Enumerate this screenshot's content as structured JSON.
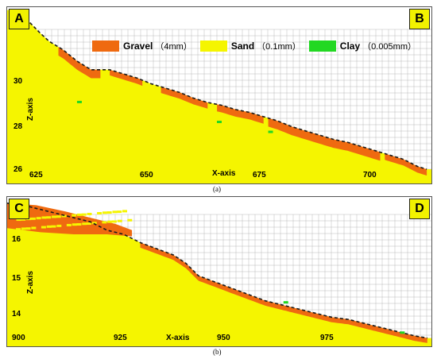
{
  "legend": {
    "items": [
      {
        "name": "Gravel",
        "size": "（4mm）",
        "color": "#ef6a10"
      },
      {
        "name": "Sand",
        "size": "（0.1mm）",
        "color": "#f5f500"
      },
      {
        "name": "Clay",
        "size": "（0.005mm）",
        "color": "#22d822"
      }
    ]
  },
  "colors": {
    "gravel": "#ef6a10",
    "sand": "#f5f500",
    "clay": "#22d822",
    "grid": "#b9b9b9",
    "edge": "#1a1a1a"
  },
  "panels": [
    {
      "id": "a",
      "corner_left": "A",
      "corner_right": "B",
      "caption": "(a)",
      "x_label": "X-axis",
      "z_label": "Z-axis",
      "x_ticks": [
        {
          "value": 625,
          "label": "625"
        },
        {
          "value": 650,
          "label": "650"
        },
        {
          "value": 675,
          "label": "675"
        },
        {
          "value": 700,
          "label": "700"
        }
      ],
      "z_ticks": [
        {
          "value": 30,
          "label": "30"
        },
        {
          "value": 28,
          "label": "28"
        },
        {
          "value": 26,
          "label": "26"
        }
      ],
      "x_range": [
        621,
        712
      ],
      "z_range": [
        25.7,
        31.9
      ],
      "surface": [
        [
          622,
          31.8
        ],
        [
          625,
          31.5
        ],
        [
          628,
          31.0
        ],
        [
          630,
          30.7
        ],
        [
          633,
          30.4
        ],
        [
          636,
          30.0
        ],
        [
          639,
          29.7
        ],
        [
          643,
          29.7
        ],
        [
          646,
          29.55
        ],
        [
          649,
          29.4
        ],
        [
          652,
          29.2
        ],
        [
          655,
          29.05
        ],
        [
          658,
          28.9
        ],
        [
          661,
          28.7
        ],
        [
          664,
          28.55
        ],
        [
          667,
          28.45
        ],
        [
          670,
          28.3
        ],
        [
          673,
          28.2
        ],
        [
          676,
          28.05
        ],
        [
          679,
          27.9
        ],
        [
          682,
          27.7
        ],
        [
          685,
          27.55
        ],
        [
          688,
          27.4
        ],
        [
          691,
          27.25
        ],
        [
          694,
          27.15
        ],
        [
          697,
          27.0
        ],
        [
          700,
          26.85
        ],
        [
          703,
          26.7
        ],
        [
          706,
          26.55
        ],
        [
          709,
          26.3
        ],
        [
          711,
          26.2
        ]
      ],
      "gravel_zones": [
        [
          632,
          641,
          0.3
        ],
        [
          643,
          650,
          0.2
        ],
        [
          654,
          664,
          0.22
        ],
        [
          666,
          676,
          0.25
        ],
        [
          677,
          701,
          0.3
        ],
        [
          702,
          711,
          0.22
        ]
      ],
      "clay_spots": [
        [
          636.5,
          28.55
        ],
        [
          666.5,
          27.85
        ],
        [
          677.5,
          27.5
        ]
      ]
    },
    {
      "id": "b",
      "corner_left": "C",
      "corner_right": "D",
      "caption": "(b)",
      "x_label": "X-axis",
      "z_label": "Z-axis",
      "x_ticks": [
        {
          "value": 900,
          "label": "900"
        },
        {
          "value": 925,
          "label": "925"
        },
        {
          "value": 950,
          "label": "950"
        },
        {
          "value": 975,
          "label": "975"
        }
      ],
      "z_ticks": [
        {
          "value": 16,
          "label": "16"
        },
        {
          "value": 15,
          "label": "15"
        },
        {
          "value": 14,
          "label": "14"
        }
      ],
      "x_range": [
        899,
        1001
      ],
      "z_range": [
        13.3,
        16.9
      ],
      "surface": [
        [
          899,
          16.75
        ],
        [
          903,
          16.7
        ],
        [
          907,
          16.6
        ],
        [
          911,
          16.5
        ],
        [
          915,
          16.4
        ],
        [
          919,
          16.3
        ],
        [
          923,
          16.1
        ],
        [
          927,
          16.0
        ],
        [
          931,
          15.8
        ],
        [
          935,
          15.65
        ],
        [
          939,
          15.5
        ],
        [
          942,
          15.3
        ],
        [
          945,
          15.0
        ],
        [
          949,
          14.85
        ],
        [
          953,
          14.7
        ],
        [
          957,
          14.55
        ],
        [
          961,
          14.4
        ],
        [
          965,
          14.3
        ],
        [
          969,
          14.2
        ],
        [
          973,
          14.1
        ],
        [
          977,
          14.0
        ],
        [
          981,
          13.95
        ],
        [
          985,
          13.85
        ],
        [
          989,
          13.75
        ],
        [
          993,
          13.65
        ],
        [
          997,
          13.55
        ],
        [
          1000,
          13.5
        ]
      ],
      "gravel_zones": [
        [
          931,
          945,
          0.12
        ],
        [
          945,
          1000,
          0.12
        ]
      ],
      "clay_spots": [
        [
          966,
          14.35
        ],
        [
          994,
          13.62
        ]
      ]
    }
  ]
}
